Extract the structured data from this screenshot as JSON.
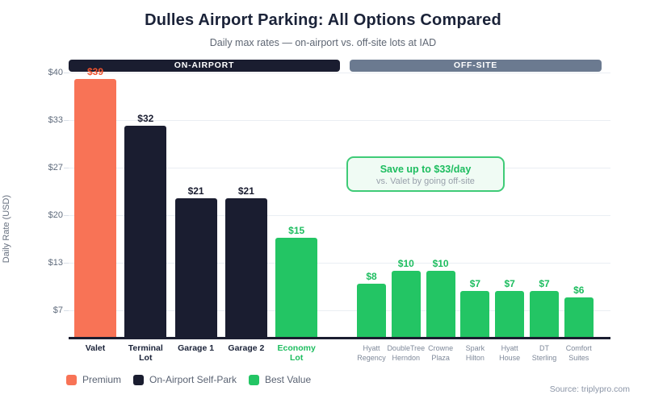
{
  "header": {
    "title": "Dulles Airport Parking: All Options Compared",
    "subtitle": "Daily max rates — on-airport vs. off-site lots at IAD"
  },
  "group_bands": {
    "on_airport_label": "ON-AIRPORT",
    "off_site_label": "OFF-SITE"
  },
  "chart_data": {
    "type": "bar",
    "title": "Dulles Airport Parking: All Options Compared",
    "subtitle": "Daily max rates — on-airport vs. off-site lots at IAD",
    "xlabel": "",
    "ylabel": "Daily Rate (USD)",
    "ylim": [
      0,
      40
    ],
    "ytick_labels": [
      "$40",
      "$33",
      "$27",
      "$20",
      "$13",
      "$7"
    ],
    "grid": true,
    "legend_position": "bottom-left",
    "bars": [
      {
        "label_lines": [
          "Valet"
        ],
        "value": 39,
        "value_label": "$39",
        "group": "on-airport",
        "category": "premium"
      },
      {
        "label_lines": [
          "Terminal",
          "Lot"
        ],
        "value": 32,
        "value_label": "$32",
        "group": "on-airport",
        "category": "self-park"
      },
      {
        "label_lines": [
          "Garage 1"
        ],
        "value": 21,
        "value_label": "$21",
        "group": "on-airport",
        "category": "self-park"
      },
      {
        "label_lines": [
          "Garage 2"
        ],
        "value": 21,
        "value_label": "$21",
        "group": "on-airport",
        "category": "self-park"
      },
      {
        "label_lines": [
          "Economy",
          "Lot"
        ],
        "value": 15,
        "value_label": "$15",
        "group": "on-airport",
        "category": "best-value"
      },
      {
        "label_lines": [
          "Hyatt",
          "Regency"
        ],
        "value": 8,
        "value_label": "$8",
        "group": "off-site",
        "category": "best-value"
      },
      {
        "label_lines": [
          "DoubleTree",
          "Herndon"
        ],
        "value": 10,
        "value_label": "$10",
        "group": "off-site",
        "category": "best-value"
      },
      {
        "label_lines": [
          "Crowne",
          "Plaza"
        ],
        "value": 10,
        "value_label": "$10",
        "group": "off-site",
        "category": "best-value"
      },
      {
        "label_lines": [
          "Spark",
          "Hilton"
        ],
        "value": 7,
        "value_label": "$7",
        "group": "off-site",
        "category": "best-value"
      },
      {
        "label_lines": [
          "Hyatt",
          "House"
        ],
        "value": 7,
        "value_label": "$7",
        "group": "off-site",
        "category": "best-value"
      },
      {
        "label_lines": [
          "DT",
          "Sterling"
        ],
        "value": 7,
        "value_label": "$7",
        "group": "off-site",
        "category": "best-value"
      },
      {
        "label_lines": [
          "Comfort",
          "Suites"
        ],
        "value": 6,
        "value_label": "$6",
        "group": "off-site",
        "category": "best-value"
      }
    ]
  },
  "annotation": {
    "headline": "Save up to $33/day",
    "detail": "vs. Valet by going off-site"
  },
  "legend": [
    {
      "label": "Premium",
      "color": "#f87356"
    },
    {
      "label": "On-Airport Self-Park",
      "color": "#1a1d30"
    },
    {
      "label": "Best Value",
      "color": "#23c564"
    }
  ],
  "source": "Source: triplypro.com",
  "colors": {
    "premium_bar": "#f87356",
    "self_park_bar": "#1a1d30",
    "best_value_bar": "#23c564",
    "premium_value_text": "#f0532d",
    "self_park_value_text": "#1a1d30",
    "best_value_value_text": "#1dbd5f",
    "on_airport_band": "#1a1d30",
    "off_site_band": "#6b7a90",
    "on_airport_tick_text": "#1a2238",
    "off_site_tick_text": "#7e8899"
  }
}
